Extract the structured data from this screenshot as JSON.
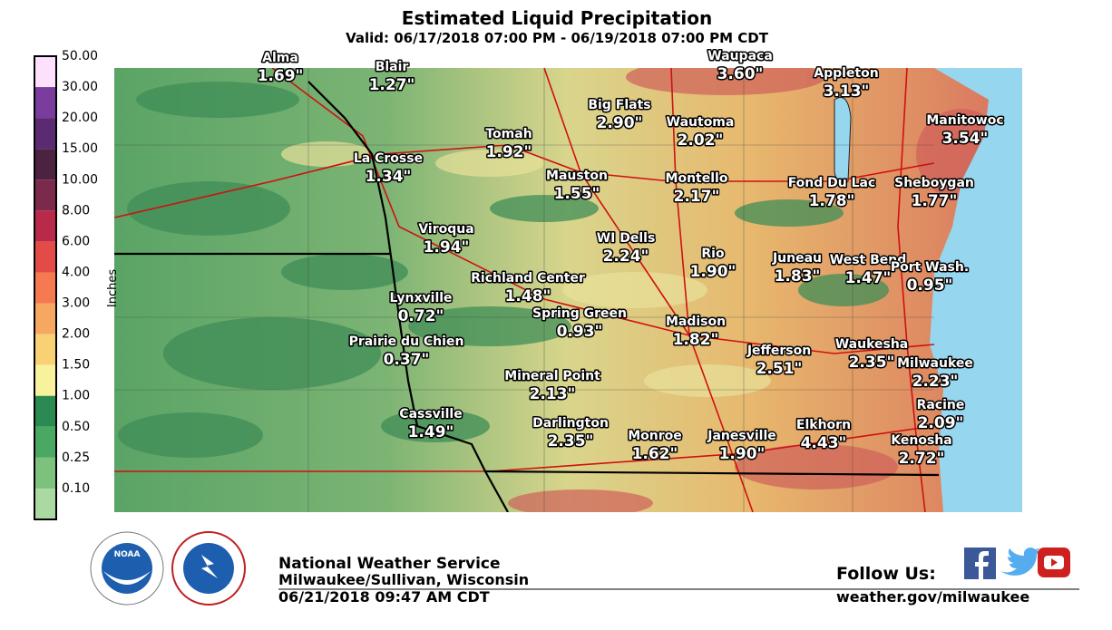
{
  "header": {
    "title": "Estimated Liquid Precipitation",
    "subtitle": "Valid: 06/17/2018 07:00 PM - 06/19/2018 07:00 PM CDT"
  },
  "legend": {
    "axis_label": "Inches",
    "labels": [
      "50.00",
      "30.00",
      "20.00",
      "15.00",
      "10.00",
      "8.00",
      "6.00",
      "4.00",
      "3.00",
      "2.00",
      "1.50",
      "1.00",
      "0.50",
      "0.25",
      "0.10"
    ]
  },
  "cities": [
    {
      "name": "Alma",
      "amount": "1.69\""
    },
    {
      "name": "Blair",
      "amount": "1.27\""
    },
    {
      "name": "Tomah",
      "amount": "1.92\""
    },
    {
      "name": "Big Flats",
      "amount": "2.90\""
    },
    {
      "name": "Waupaca",
      "amount": "3.60\""
    },
    {
      "name": "Appleton",
      "amount": "3.13\""
    },
    {
      "name": "Manitowoc",
      "amount": "3.54\""
    },
    {
      "name": "La Crosse",
      "amount": "1.34\""
    },
    {
      "name": "Wautoma",
      "amount": "2.02\""
    },
    {
      "name": "Mauston",
      "amount": "1.55\""
    },
    {
      "name": "Montello",
      "amount": "2.17\""
    },
    {
      "name": "Fond Du Lac",
      "amount": "1.78\""
    },
    {
      "name": "Sheboygan",
      "amount": "1.77\""
    },
    {
      "name": "Viroqua",
      "amount": "1.94\""
    },
    {
      "name": "WI Dells",
      "amount": "2.24\""
    },
    {
      "name": "Rio",
      "amount": "1.90\""
    },
    {
      "name": "Juneau",
      "amount": "1.83\""
    },
    {
      "name": "West Bend",
      "amount": "1.47\""
    },
    {
      "name": "Port Wash.",
      "amount": "0.95\""
    },
    {
      "name": "Richland Center",
      "amount": "1.48\""
    },
    {
      "name": "Lynxville",
      "amount": "0.72\""
    },
    {
      "name": "Spring Green",
      "amount": "0.93\""
    },
    {
      "name": "Madison",
      "amount": "1.82\""
    },
    {
      "name": "Prairie du Chien",
      "amount": "0.37\""
    },
    {
      "name": "Jefferson",
      "amount": "2.51\""
    },
    {
      "name": "Waukesha",
      "amount": "2.35\""
    },
    {
      "name": "Milwaukee",
      "amount": "2.23\""
    },
    {
      "name": "Mineral Point",
      "amount": "2.13\""
    },
    {
      "name": "Racine",
      "amount": "2.09\""
    },
    {
      "name": "Cassville",
      "amount": "1.49\""
    },
    {
      "name": "Darlington",
      "amount": "2.35\""
    },
    {
      "name": "Monroe",
      "amount": "1.62\""
    },
    {
      "name": "Janesville",
      "amount": "1.90\""
    },
    {
      "name": "Elkhorn",
      "amount": "4.43\""
    },
    {
      "name": "Kenosha",
      "amount": "2.72\""
    }
  ],
  "footer": {
    "office": "National Weather Service",
    "location": "Milwaukee/Sullivan, Wisconsin",
    "issued": "06/21/2018 09:47 AM CDT",
    "follow": "Follow Us:",
    "url": "weather.gov/milwaukee",
    "noaa_logo": "NOAA"
  }
}
